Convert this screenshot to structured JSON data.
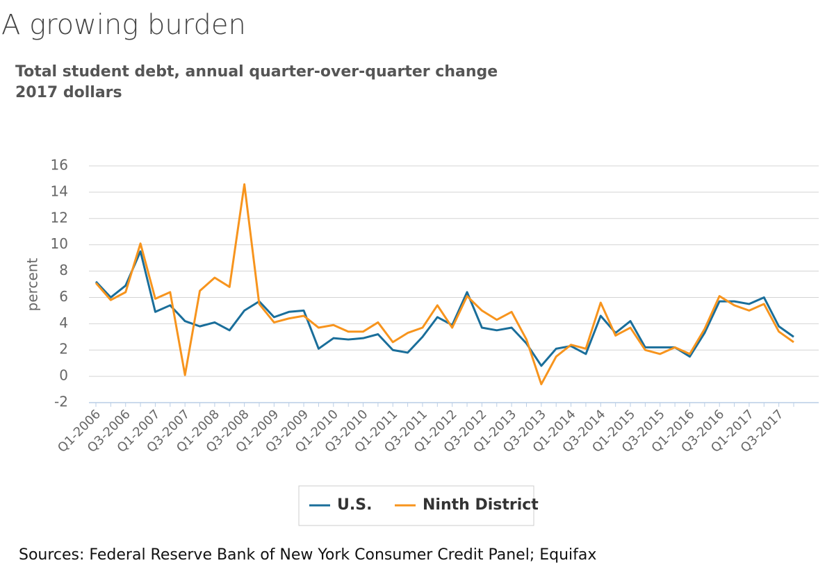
{
  "chart_data": {
    "type": "line",
    "title": "A growing burden",
    "subtitle": [
      "Total student debt, annual quarter-over-quarter change",
      "2017 dollars"
    ],
    "y_label": "percent",
    "source": "Sources: Federal Reserve Bank of New York Consumer Credit Panel; Equifax",
    "categories": [
      "Q1-2006",
      null,
      "Q3-2006",
      null,
      "Q1-2007",
      null,
      "Q3-2007",
      null,
      "Q1-2008",
      null,
      "Q3-2008",
      null,
      "Q1-2009",
      null,
      "Q3-2009",
      null,
      "Q1-2010",
      null,
      "Q3-2010",
      null,
      "Q1-2011",
      null,
      "Q3-2011",
      null,
      "Q1-2012",
      null,
      "Q3-2012",
      null,
      "Q1-2013",
      null,
      "Q3-2013",
      null,
      "Q1-2014",
      null,
      "Q3-2014",
      null,
      "Q1-2015",
      null,
      "Q3-2015",
      null,
      "Q1-2016",
      null,
      "Q3-2016",
      null,
      "Q1-2017",
      null,
      "Q3-2017",
      null
    ],
    "series": [
      {
        "name": "U.S.",
        "color": "#1a6e9a",
        "values": [
          7.2,
          6.0,
          6.9,
          9.5,
          4.9,
          5.4,
          4.2,
          3.8,
          4.1,
          3.5,
          5.0,
          5.7,
          4.5,
          4.9,
          5.0,
          2.1,
          2.9,
          2.8,
          2.9,
          3.2,
          2.0,
          1.8,
          3.0,
          4.5,
          3.9,
          6.4,
          3.7,
          3.5,
          3.7,
          2.5,
          0.8,
          2.1,
          2.3,
          1.7,
          4.6,
          3.3,
          4.2,
          2.2,
          2.2,
          2.2,
          1.5,
          3.3,
          5.7,
          5.7,
          5.5,
          6.0,
          3.8,
          3.0
        ]
      },
      {
        "name": "Ninth District",
        "color": "#f7941d",
        "values": [
          7.1,
          5.8,
          6.4,
          10.1,
          5.9,
          6.4,
          0.1,
          6.5,
          7.5,
          6.8,
          14.6,
          5.5,
          4.1,
          4.4,
          4.6,
          3.7,
          3.9,
          3.4,
          3.4,
          4.1,
          2.6,
          3.3,
          3.7,
          5.4,
          3.7,
          6.1,
          5.0,
          4.3,
          4.9,
          2.8,
          -0.6,
          1.5,
          2.4,
          2.1,
          5.6,
          3.1,
          3.7,
          2.0,
          1.7,
          2.2,
          1.7,
          3.6,
          6.1,
          5.4,
          5.0,
          5.5,
          3.4,
          2.6
        ]
      }
    ],
    "ylim": [
      -2,
      16
    ],
    "yticks": [
      -2,
      0,
      2,
      4,
      6,
      8,
      10,
      12,
      14,
      16
    ],
    "grid": true,
    "legend": "bottom"
  }
}
